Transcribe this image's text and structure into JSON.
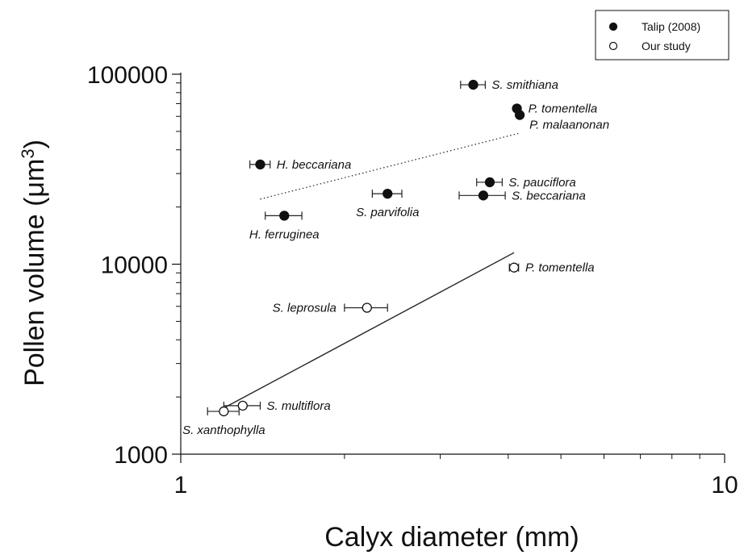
{
  "chart_data": {
    "type": "scatter",
    "xscale": "log",
    "yscale": "log",
    "xlim": [
      1,
      10
    ],
    "ylim": [
      1000,
      100000
    ],
    "xlabel": "Calyx diameter (mm)",
    "ylabel_main": "Pollen volume (μm",
    "ylabel_sup": "3",
    "ylabel_close": ")",
    "x_ticks": [
      {
        "value": 1,
        "label": "1"
      },
      {
        "value": 10,
        "label": "10"
      }
    ],
    "y_ticks": [
      {
        "value": 1000,
        "label": "1000"
      },
      {
        "value": 10000,
        "label": "10000"
      },
      {
        "value": 100000,
        "label": "100000"
      }
    ],
    "legend": {
      "position": "top-right",
      "entries": [
        {
          "label": "Talip (2008)",
          "marker": "filled-circle"
        },
        {
          "label": "Our study",
          "marker": "open-circle"
        }
      ]
    },
    "series": [
      {
        "name": "Talip (2008)",
        "marker": "filled-circle",
        "points": [
          {
            "label": "S. smithiana",
            "x": 3.45,
            "y": 88000,
            "xerr": 0.18,
            "label_pos": "right"
          },
          {
            "label": "P. tomentella",
            "x": 4.15,
            "y": 66000,
            "xerr": 0.0,
            "label_pos": "right"
          },
          {
            "label": "P. malaanonan",
            "x": 4.2,
            "y": 61000,
            "xerr": 0.0,
            "label_pos": "right-below"
          },
          {
            "label": "H. beccariana",
            "x": 1.4,
            "y": 33500,
            "xerr": 0.06,
            "label_pos": "right"
          },
          {
            "label": "S. pauciflora",
            "x": 3.7,
            "y": 27000,
            "xerr": 0.2,
            "label_pos": "right"
          },
          {
            "label": "S. parvifolia",
            "x": 2.4,
            "y": 23500,
            "xerr": 0.15,
            "label_pos": "below"
          },
          {
            "label": "S. beccariana",
            "x": 3.6,
            "y": 23000,
            "xerr": 0.35,
            "label_pos": "right"
          },
          {
            "label": "H. ferruginea",
            "x": 1.55,
            "y": 18000,
            "xerr": 0.12,
            "label_pos": "below"
          }
        ]
      },
      {
        "name": "Our study",
        "marker": "open-circle",
        "points": [
          {
            "label": "P. tomentella",
            "x": 4.1,
            "y": 9600,
            "xerr": 0.08,
            "label_pos": "right"
          },
          {
            "label": "S. leprosula",
            "x": 2.2,
            "y": 5900,
            "xerr": 0.2,
            "label_pos": "left"
          },
          {
            "label": "S. multiflora",
            "x": 1.3,
            "y": 1800,
            "xerr": 0.1,
            "label_pos": "right"
          },
          {
            "label": "S. xanthophylla",
            "x": 1.2,
            "y": 1680,
            "xerr": 0.08,
            "label_pos": "below"
          }
        ]
      }
    ],
    "trend_lines": [
      {
        "series": "Talip (2008)",
        "style": "dotted",
        "x": [
          1.4,
          4.2
        ],
        "y": [
          22000,
          49000
        ]
      },
      {
        "series": "Our study",
        "style": "solid",
        "x": [
          1.2,
          4.1
        ],
        "y": [
          1750,
          11500
        ]
      }
    ]
  }
}
